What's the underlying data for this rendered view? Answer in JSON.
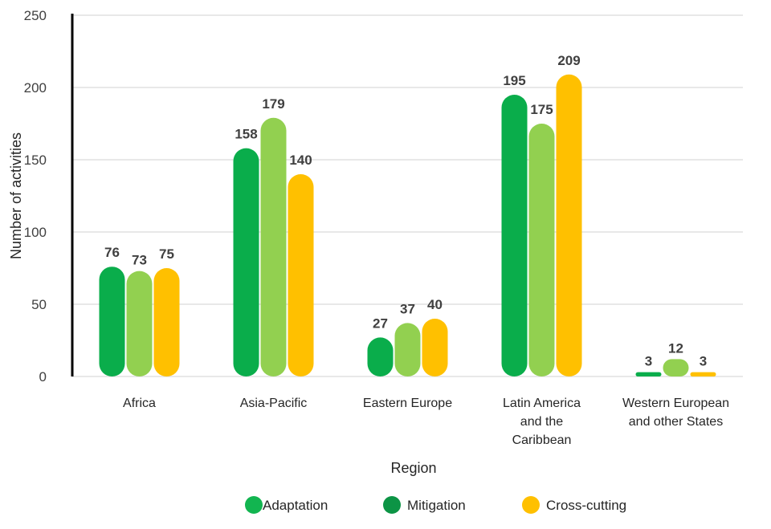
{
  "chart_data": {
    "type": "bar",
    "title": "",
    "xlabel": "Region",
    "ylabel": "Number of activities",
    "ylim": [
      0,
      250
    ],
    "yticks": [
      0,
      50,
      100,
      150,
      200,
      250
    ],
    "grid": true,
    "legend_position": "bottom",
    "categories": [
      [
        "Africa"
      ],
      [
        "Asia-Pacific"
      ],
      [
        "Eastern Europe"
      ],
      [
        "Latin America",
        "and the",
        "Caribbean"
      ],
      [
        "Western European",
        "and other States"
      ]
    ],
    "series": [
      {
        "name": "Adaptation",
        "values": [
          76,
          158,
          27,
          195,
          3
        ],
        "bar_color": "#0aad4b",
        "legend_color": "#12b550"
      },
      {
        "name": "Mitigation",
        "values": [
          73,
          179,
          37,
          175,
          12
        ],
        "bar_color": "#92d050",
        "legend_color": "#0c9445"
      },
      {
        "name": "Cross-cutting",
        "values": [
          75,
          140,
          40,
          209,
          3
        ],
        "bar_color": "#ffc000",
        "legend_color": "#ffc000"
      }
    ]
  }
}
